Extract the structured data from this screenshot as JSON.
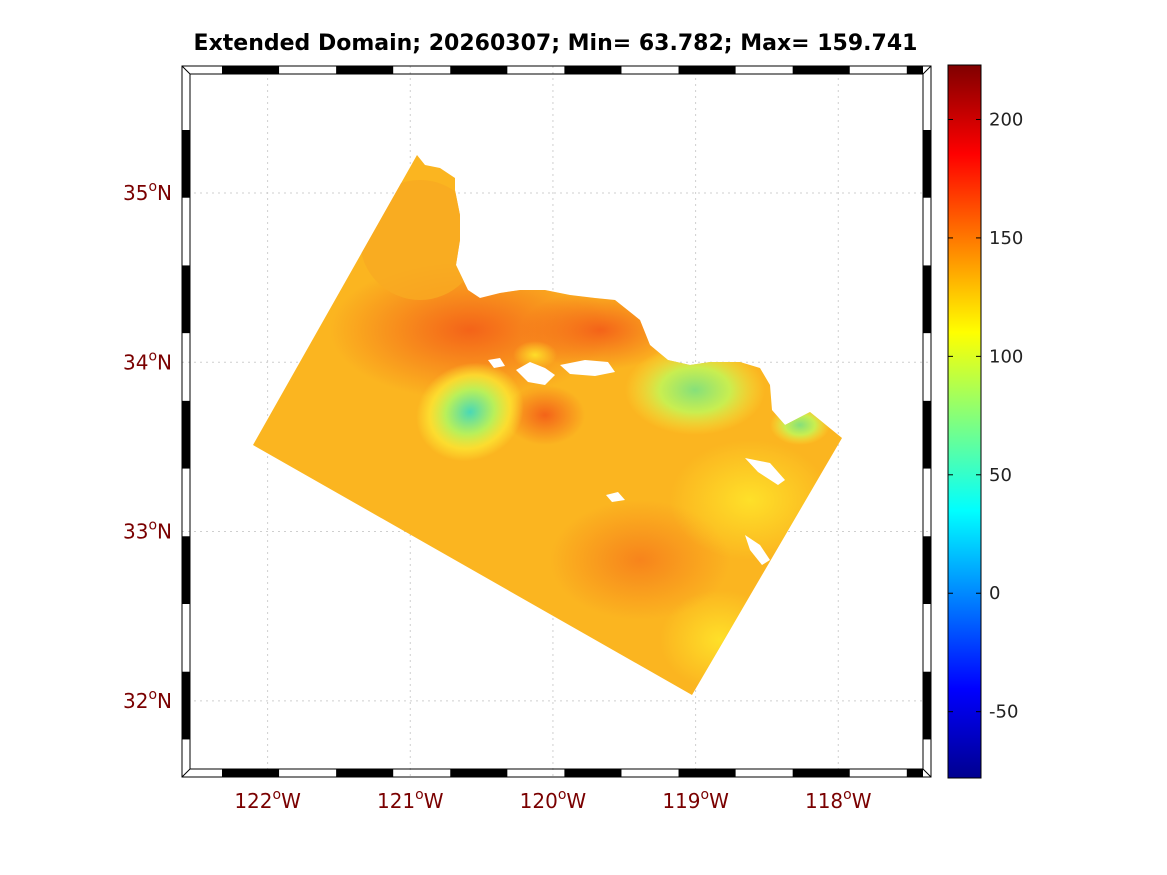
{
  "title": "Extended Domain; 20260307; Min= 63.782; Max= 159.741",
  "map": {
    "lon_ticks": [
      {
        "value": -122,
        "deg": "122",
        "dir": "W"
      },
      {
        "value": -121,
        "deg": "121",
        "dir": "W"
      },
      {
        "value": -120,
        "deg": "120",
        "dir": "W"
      },
      {
        "value": -119,
        "deg": "119",
        "dir": "W"
      },
      {
        "value": -118,
        "deg": "118",
        "dir": "W"
      }
    ],
    "lat_ticks": [
      {
        "value": 35,
        "deg": "35",
        "dir": "N"
      },
      {
        "value": 34,
        "deg": "34",
        "dir": "N"
      },
      {
        "value": 33,
        "deg": "33",
        "dir": "N"
      },
      {
        "value": 32,
        "deg": "32",
        "dir": "N"
      }
    ],
    "degree_symbol": "o",
    "lon_range": [
      -122.6,
      -117.35
    ],
    "lat_range": [
      31.55,
      35.75
    ],
    "grid": "dotted"
  },
  "colorbar": {
    "range": [
      -78,
      223
    ],
    "ticks": [
      {
        "value": 200,
        "label": "200"
      },
      {
        "value": 150,
        "label": "150"
      },
      {
        "value": 100,
        "label": "100"
      },
      {
        "value": 50,
        "label": "50"
      },
      {
        "value": 0,
        "label": "0"
      },
      {
        "value": -50,
        "label": "-50"
      }
    ],
    "colormap": "jet"
  },
  "colors": {
    "field_base": "#fbb21e",
    "field_high": "#f4641a",
    "field_low": "#5fe0a0",
    "label_red": "#7a0000"
  }
}
